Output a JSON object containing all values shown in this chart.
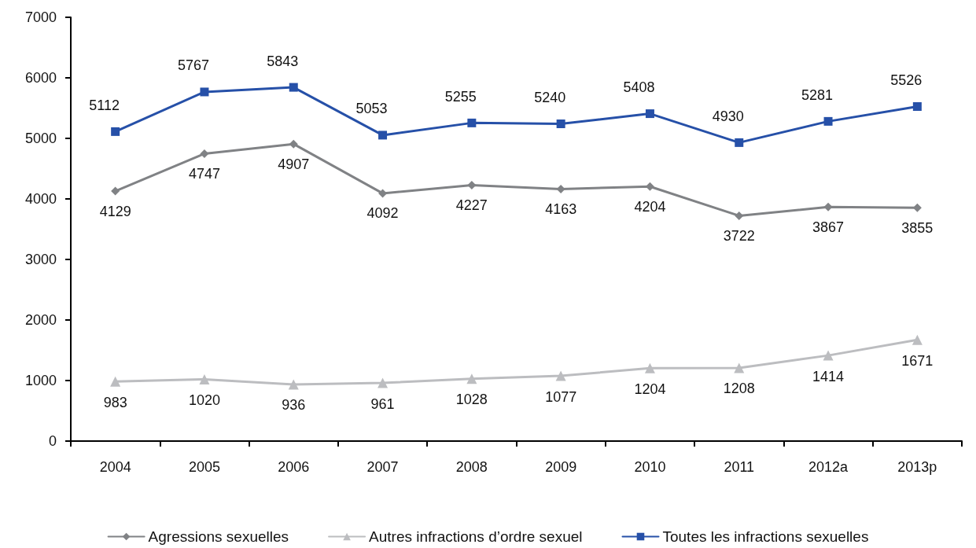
{
  "chart_data": {
    "type": "line",
    "categories": [
      "2004",
      "2005",
      "2006",
      "2007",
      "2008",
      "2009",
      "2010",
      "2011",
      "2012a",
      "2013p"
    ],
    "series": [
      {
        "name": "Agressions sexuelles",
        "color": "#808285",
        "marker": "diamond",
        "values": [
          4129,
          4747,
          4907,
          4092,
          4227,
          4163,
          4204,
          3722,
          3867,
          3855
        ]
      },
      {
        "name": "Autres infractions d’ordre sexuel",
        "color": "#bcbdc0",
        "marker": "triangle",
        "values": [
          983,
          1020,
          936,
          961,
          1028,
          1077,
          1204,
          1208,
          1414,
          1671
        ]
      },
      {
        "name": "Toutes les infractions sexuelles",
        "color": "#2650a8",
        "marker": "square",
        "values": [
          5112,
          5767,
          5843,
          5053,
          5255,
          5240,
          5408,
          4930,
          5281,
          5526
        ]
      }
    ],
    "ylim": [
      0,
      7000
    ],
    "yticks": [
      0,
      1000,
      2000,
      3000,
      4000,
      5000,
      6000,
      7000
    ],
    "grid": false,
    "legend": "bottom",
    "data_labels": true,
    "line_style": "solid"
  }
}
